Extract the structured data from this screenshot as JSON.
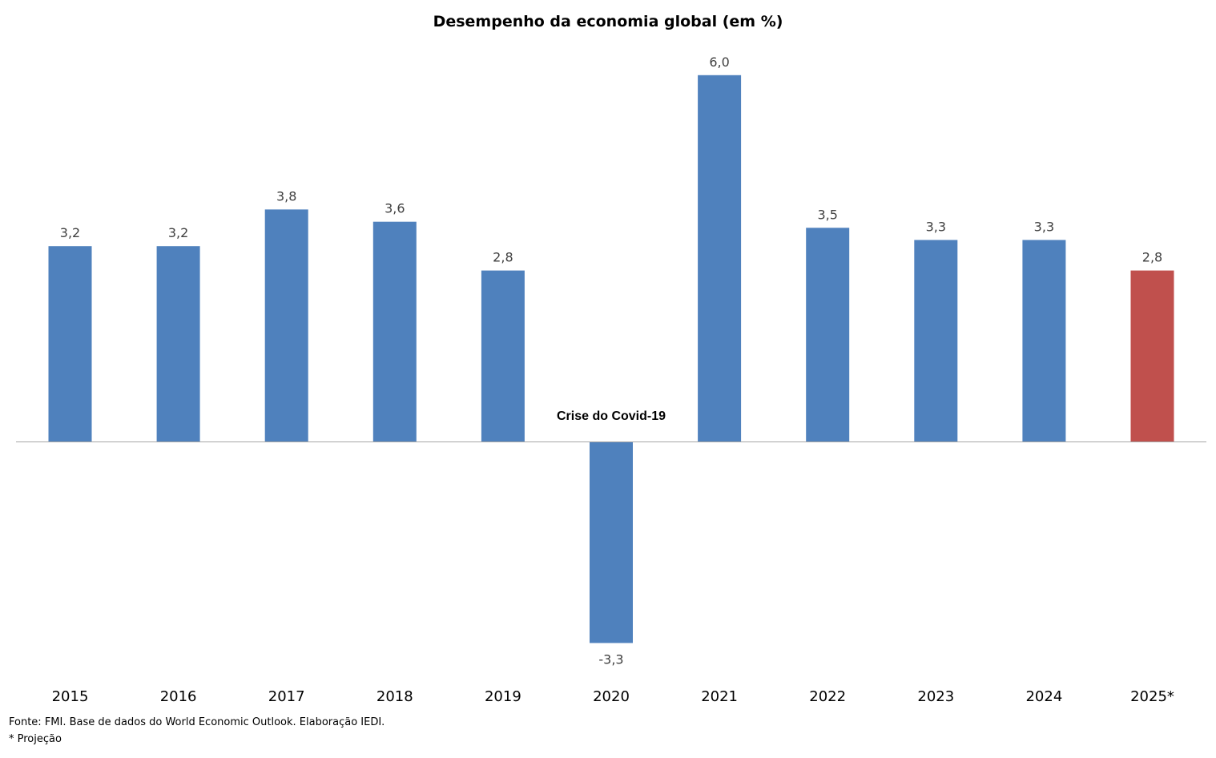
{
  "chart_data": {
    "type": "bar",
    "title": "Desempenho da economia global (em %)",
    "categories": [
      "2015",
      "2016",
      "2017",
      "2018",
      "2019",
      "2020",
      "2021",
      "2022",
      "2023",
      "2024",
      "2025*"
    ],
    "values": [
      3.2,
      3.2,
      3.8,
      3.6,
      2.8,
      -3.3,
      6.0,
      3.5,
      3.3,
      3.3,
      2.8
    ],
    "value_labels": [
      "3,2",
      "3,2",
      "3,8",
      "3,6",
      "2,8",
      "-3,3",
      "6,0",
      "3,5",
      "3,3",
      "3,3",
      "2,8"
    ],
    "bar_colors": [
      "#4f81bd",
      "#4f81bd",
      "#4f81bd",
      "#4f81bd",
      "#4f81bd",
      "#4f81bd",
      "#4f81bd",
      "#4f81bd",
      "#4f81bd",
      "#4f81bd",
      "#c0504d"
    ],
    "ylim": [
      -3.3,
      6.0
    ],
    "grid": false,
    "legend": "none",
    "annotations": [
      {
        "text": "Crise do Covid-19",
        "category": "2020"
      }
    ]
  },
  "footer": {
    "source": "Fonte: FMI. Base de dados do World Economic Outlook. Elaboração IEDI.",
    "footnote": "* Projeção"
  }
}
